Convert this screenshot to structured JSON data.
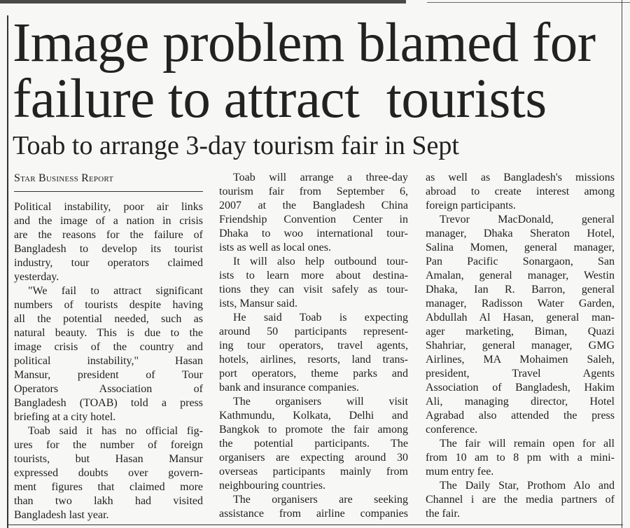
{
  "headline": [
    "Image problem blamed for",
    "failure to attract  tourists"
  ],
  "subhead": "Toab to arrange 3-day tourism fair in Sept",
  "byline": "Star Business Report",
  "columns": [
    [
      [
        "Political instability, poor air links",
        "and the image of a nation in crisis",
        "are the reasons for the failure of",
        "Bangladesh to develop its tourist",
        "industry, tour operators claimed",
        "yesterday."
      ],
      [
        "\"We fail to attract significant",
        "numbers of tourists despite having",
        "all the potential needed, such as",
        "natural beauty. This is due to the",
        "image crisis of the country and",
        "political instability,\" Hasan",
        "Mansur, president of Tour",
        "Operators Association of",
        "Bangladesh (TOAB) told a press",
        "briefing at a city hotel."
      ],
      [
        "Toab said it has no official fig-",
        "ures for the number of foreign",
        "tourists, but Hasan Mansur",
        "expressed  doubts over govern-",
        "ment figures that claimed more",
        "than two lakh had visited",
        "Bangladesh last year."
      ]
    ],
    [
      [
        "Toab will arrange a three-day",
        "tourism fair from September 6,",
        "2007 at the Bangladesh China",
        "Friendship Convention Center in",
        "Dhaka to woo international tour-",
        "ists as well as local ones."
      ],
      [
        "It will also help outbound tour-",
        "ists to learn more about destina-",
        "tions they can visit safely as tour-",
        "ists, Mansur said."
      ],
      [
        "He said Toab is expecting",
        "around 50 participants represent-",
        "ing tour operators, travel agents,",
        "hotels, airlines, resorts, land trans-",
        "port operators, theme parks and",
        "bank and insurance companies."
      ],
      [
        "The organisers will visit",
        "Kathmundu, Kolkata, Delhi and",
        "Bangkok to promote the fair among",
        "the potential participants. The",
        "organisers are expecting around 30",
        "overseas participants mainly from",
        "neighbouring countries."
      ],
      [
        "The organisers are seeking",
        "assistance from airline companies"
      ]
    ],
    [
      [
        "as well as Bangladesh's missions",
        "abroad to create interest among",
        "foreign participants."
      ],
      [
        "Trevor MacDonald, general",
        "manager, Dhaka Sheraton Hotel,",
        "Salina Momen, general manager,",
        "Pan Pacific Sonargaon, San",
        "Amalan, general manager, Westin",
        "Dhaka, Ian R. Barron, general",
        "manager, Radisson Water Garden,",
        "Abdullah Al Hasan, general man-",
        "ager marketing, Biman, Quazi",
        "Shahriar, general manager, GMG",
        "Airlines, MA Mohaimen Saleh,",
        "president, Travel Agents",
        "Association of Bangladesh, Hakim",
        "Ali, managing director, Hotel",
        "Agrabad also attended the press",
        "conference."
      ],
      [
        "The fair will remain open for all",
        "from 10 am to 8 pm with a mini-",
        "mum entry fee."
      ],
      [
        "The Daily Star, Prothom Alo and",
        "Channel i are the media partners of",
        "the fair."
      ]
    ]
  ]
}
